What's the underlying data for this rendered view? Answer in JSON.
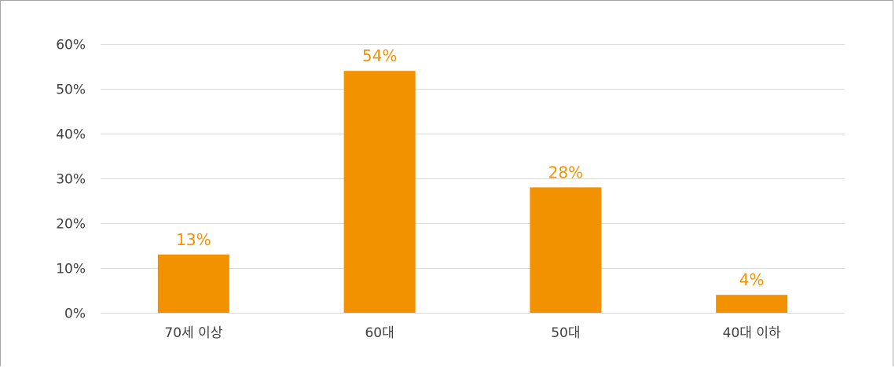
{
  "chart_data": {
    "type": "bar",
    "categories": [
      "70세 이상",
      "60대",
      "50대",
      "40대 이하"
    ],
    "values": [
      13,
      54,
      28,
      4
    ],
    "data_labels": [
      "13%",
      "54%",
      "28%",
      "4%"
    ],
    "ylim": [
      0,
      60
    ],
    "yticks": [
      0,
      10,
      20,
      30,
      40,
      50,
      60
    ],
    "ytick_labels": [
      "0%",
      "10%",
      "20%",
      "30%",
      "40%",
      "50%",
      "60%"
    ],
    "grid": true,
    "bar_color": "#f39200",
    "label_color": "#f39200",
    "grid_color": "#d9d9d9"
  }
}
